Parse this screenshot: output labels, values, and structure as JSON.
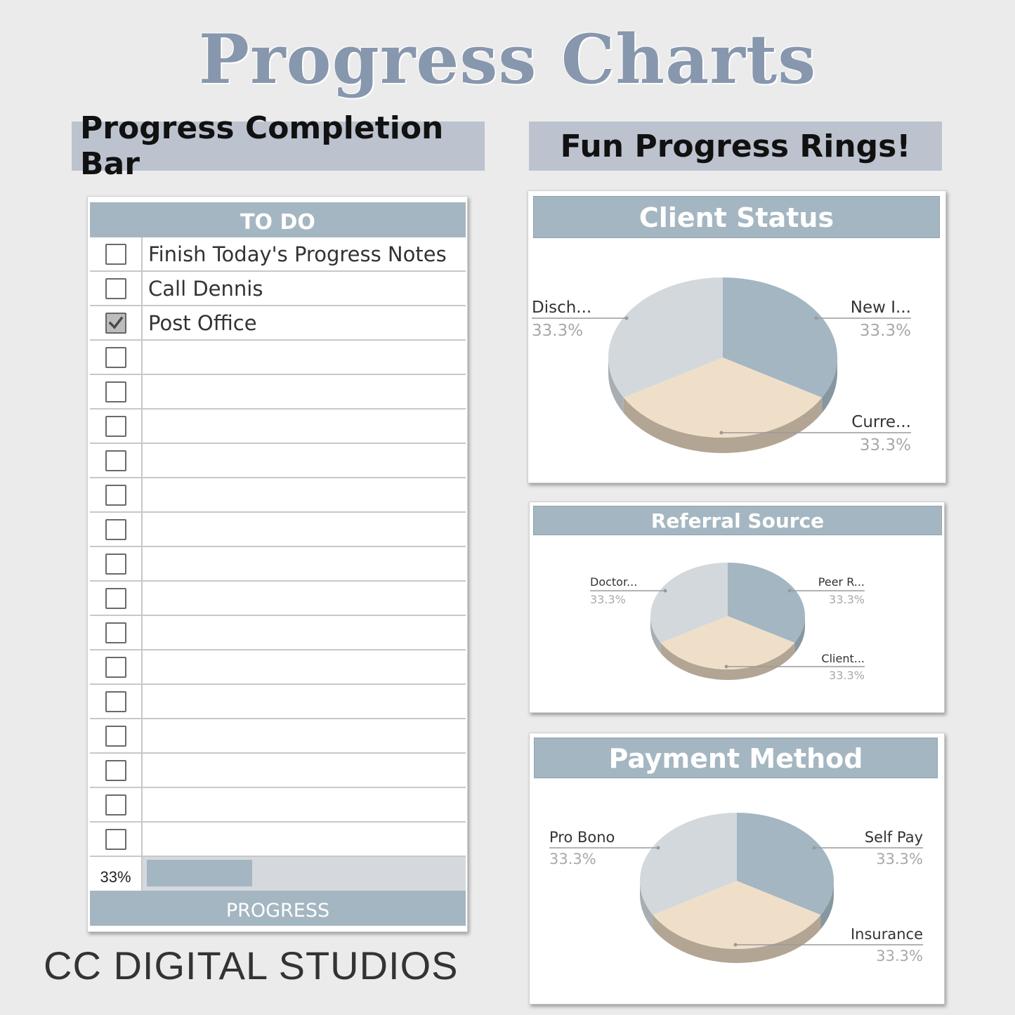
{
  "page": {
    "title": "Progress Charts",
    "brand": "CC DIGITAL STUDIOS",
    "left_section_title": "Progress Completion Bar",
    "right_section_title": "Fun Progress Rings!"
  },
  "todo": {
    "header": "TO DO",
    "footer": "PROGRESS",
    "progress_label": "33%",
    "progress_fraction": 0.33,
    "items": [
      {
        "text": "Finish Today's Progress Notes",
        "checked": false
      },
      {
        "text": "Call Dennis",
        "checked": false
      },
      {
        "text": "Post Office",
        "checked": true
      },
      {
        "text": "",
        "checked": false
      },
      {
        "text": "",
        "checked": false
      },
      {
        "text": "",
        "checked": false
      },
      {
        "text": "",
        "checked": false
      },
      {
        "text": "",
        "checked": false
      },
      {
        "text": "",
        "checked": false
      },
      {
        "text": "",
        "checked": false
      },
      {
        "text": "",
        "checked": false
      },
      {
        "text": "",
        "checked": false
      },
      {
        "text": "",
        "checked": false
      },
      {
        "text": "",
        "checked": false
      },
      {
        "text": "",
        "checked": false
      },
      {
        "text": "",
        "checked": false
      },
      {
        "text": "",
        "checked": false
      },
      {
        "text": "",
        "checked": false
      }
    ]
  },
  "colors": {
    "slice_blue": "#a3b6c1",
    "slice_blue_side": "#86979f",
    "slice_peach": "#efdfc9",
    "slice_peach_side": "#b3a593",
    "slice_gray": "#d3d8dd",
    "slice_gray_side": "#a9aeb2",
    "header_blue": "#a4b6c1"
  },
  "chart_data": [
    {
      "type": "pie",
      "title": "Client Status",
      "categories": [
        "New I...",
        "Curre...",
        "Disch..."
      ],
      "values": [
        33.3,
        33.3,
        33.3
      ],
      "value_labels": [
        "33.3%",
        "33.3%",
        "33.3%"
      ]
    },
    {
      "type": "pie",
      "title": "Referral Source",
      "categories": [
        "Peer R...",
        "Client...",
        "Doctor..."
      ],
      "values": [
        33.3,
        33.3,
        33.3
      ],
      "value_labels": [
        "33.3%",
        "33.3%",
        "33.3%"
      ]
    },
    {
      "type": "pie",
      "title": "Payment Method",
      "categories": [
        "Self Pay",
        "Insurance",
        "Pro Bono"
      ],
      "values": [
        33.3,
        33.3,
        33.3
      ],
      "value_labels": [
        "33.3%",
        "33.3%",
        "33.3%"
      ]
    }
  ]
}
